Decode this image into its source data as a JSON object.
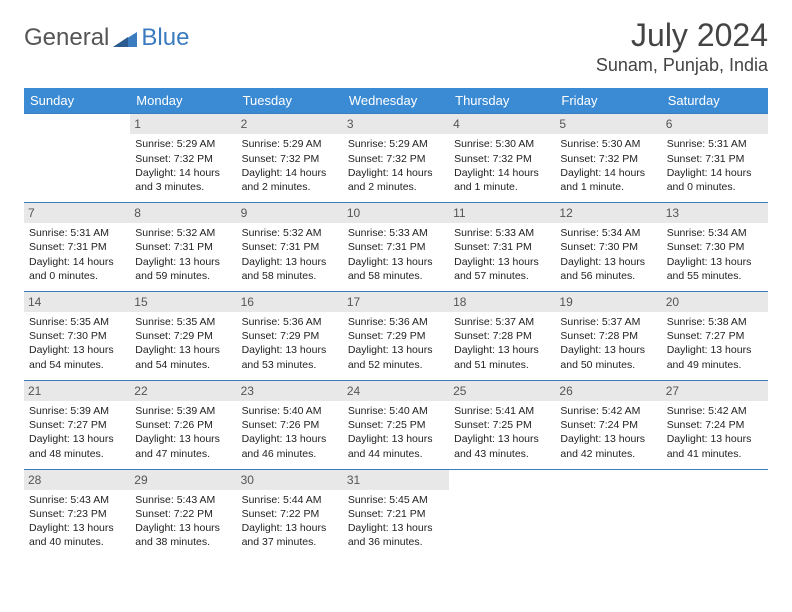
{
  "logo": {
    "general": "General",
    "blue": "Blue"
  },
  "title": "July 2024",
  "location": "Sunam, Punjab, India",
  "colors": {
    "header_bg": "#3b8bd4",
    "header_fg": "#ffffff",
    "border": "#3b7bbf",
    "daynum_bg": "#e8e8e8",
    "text": "#222222"
  },
  "weekdays": [
    "Sunday",
    "Monday",
    "Tuesday",
    "Wednesday",
    "Thursday",
    "Friday",
    "Saturday"
  ],
  "weeks": [
    [
      null,
      {
        "n": "1",
        "sr": "Sunrise: 5:29 AM",
        "ss": "Sunset: 7:32 PM",
        "d1": "Daylight: 14 hours",
        "d2": "and 3 minutes."
      },
      {
        "n": "2",
        "sr": "Sunrise: 5:29 AM",
        "ss": "Sunset: 7:32 PM",
        "d1": "Daylight: 14 hours",
        "d2": "and 2 minutes."
      },
      {
        "n": "3",
        "sr": "Sunrise: 5:29 AM",
        "ss": "Sunset: 7:32 PM",
        "d1": "Daylight: 14 hours",
        "d2": "and 2 minutes."
      },
      {
        "n": "4",
        "sr": "Sunrise: 5:30 AM",
        "ss": "Sunset: 7:32 PM",
        "d1": "Daylight: 14 hours",
        "d2": "and 1 minute."
      },
      {
        "n": "5",
        "sr": "Sunrise: 5:30 AM",
        "ss": "Sunset: 7:32 PM",
        "d1": "Daylight: 14 hours",
        "d2": "and 1 minute."
      },
      {
        "n": "6",
        "sr": "Sunrise: 5:31 AM",
        "ss": "Sunset: 7:31 PM",
        "d1": "Daylight: 14 hours",
        "d2": "and 0 minutes."
      }
    ],
    [
      {
        "n": "7",
        "sr": "Sunrise: 5:31 AM",
        "ss": "Sunset: 7:31 PM",
        "d1": "Daylight: 14 hours",
        "d2": "and 0 minutes."
      },
      {
        "n": "8",
        "sr": "Sunrise: 5:32 AM",
        "ss": "Sunset: 7:31 PM",
        "d1": "Daylight: 13 hours",
        "d2": "and 59 minutes."
      },
      {
        "n": "9",
        "sr": "Sunrise: 5:32 AM",
        "ss": "Sunset: 7:31 PM",
        "d1": "Daylight: 13 hours",
        "d2": "and 58 minutes."
      },
      {
        "n": "10",
        "sr": "Sunrise: 5:33 AM",
        "ss": "Sunset: 7:31 PM",
        "d1": "Daylight: 13 hours",
        "d2": "and 58 minutes."
      },
      {
        "n": "11",
        "sr": "Sunrise: 5:33 AM",
        "ss": "Sunset: 7:31 PM",
        "d1": "Daylight: 13 hours",
        "d2": "and 57 minutes."
      },
      {
        "n": "12",
        "sr": "Sunrise: 5:34 AM",
        "ss": "Sunset: 7:30 PM",
        "d1": "Daylight: 13 hours",
        "d2": "and 56 minutes."
      },
      {
        "n": "13",
        "sr": "Sunrise: 5:34 AM",
        "ss": "Sunset: 7:30 PM",
        "d1": "Daylight: 13 hours",
        "d2": "and 55 minutes."
      }
    ],
    [
      {
        "n": "14",
        "sr": "Sunrise: 5:35 AM",
        "ss": "Sunset: 7:30 PM",
        "d1": "Daylight: 13 hours",
        "d2": "and 54 minutes."
      },
      {
        "n": "15",
        "sr": "Sunrise: 5:35 AM",
        "ss": "Sunset: 7:29 PM",
        "d1": "Daylight: 13 hours",
        "d2": "and 54 minutes."
      },
      {
        "n": "16",
        "sr": "Sunrise: 5:36 AM",
        "ss": "Sunset: 7:29 PM",
        "d1": "Daylight: 13 hours",
        "d2": "and 53 minutes."
      },
      {
        "n": "17",
        "sr": "Sunrise: 5:36 AM",
        "ss": "Sunset: 7:29 PM",
        "d1": "Daylight: 13 hours",
        "d2": "and 52 minutes."
      },
      {
        "n": "18",
        "sr": "Sunrise: 5:37 AM",
        "ss": "Sunset: 7:28 PM",
        "d1": "Daylight: 13 hours",
        "d2": "and 51 minutes."
      },
      {
        "n": "19",
        "sr": "Sunrise: 5:37 AM",
        "ss": "Sunset: 7:28 PM",
        "d1": "Daylight: 13 hours",
        "d2": "and 50 minutes."
      },
      {
        "n": "20",
        "sr": "Sunrise: 5:38 AM",
        "ss": "Sunset: 7:27 PM",
        "d1": "Daylight: 13 hours",
        "d2": "and 49 minutes."
      }
    ],
    [
      {
        "n": "21",
        "sr": "Sunrise: 5:39 AM",
        "ss": "Sunset: 7:27 PM",
        "d1": "Daylight: 13 hours",
        "d2": "and 48 minutes."
      },
      {
        "n": "22",
        "sr": "Sunrise: 5:39 AM",
        "ss": "Sunset: 7:26 PM",
        "d1": "Daylight: 13 hours",
        "d2": "and 47 minutes."
      },
      {
        "n": "23",
        "sr": "Sunrise: 5:40 AM",
        "ss": "Sunset: 7:26 PM",
        "d1": "Daylight: 13 hours",
        "d2": "and 46 minutes."
      },
      {
        "n": "24",
        "sr": "Sunrise: 5:40 AM",
        "ss": "Sunset: 7:25 PM",
        "d1": "Daylight: 13 hours",
        "d2": "and 44 minutes."
      },
      {
        "n": "25",
        "sr": "Sunrise: 5:41 AM",
        "ss": "Sunset: 7:25 PM",
        "d1": "Daylight: 13 hours",
        "d2": "and 43 minutes."
      },
      {
        "n": "26",
        "sr": "Sunrise: 5:42 AM",
        "ss": "Sunset: 7:24 PM",
        "d1": "Daylight: 13 hours",
        "d2": "and 42 minutes."
      },
      {
        "n": "27",
        "sr": "Sunrise: 5:42 AM",
        "ss": "Sunset: 7:24 PM",
        "d1": "Daylight: 13 hours",
        "d2": "and 41 minutes."
      }
    ],
    [
      {
        "n": "28",
        "sr": "Sunrise: 5:43 AM",
        "ss": "Sunset: 7:23 PM",
        "d1": "Daylight: 13 hours",
        "d2": "and 40 minutes."
      },
      {
        "n": "29",
        "sr": "Sunrise: 5:43 AM",
        "ss": "Sunset: 7:22 PM",
        "d1": "Daylight: 13 hours",
        "d2": "and 38 minutes."
      },
      {
        "n": "30",
        "sr": "Sunrise: 5:44 AM",
        "ss": "Sunset: 7:22 PM",
        "d1": "Daylight: 13 hours",
        "d2": "and 37 minutes."
      },
      {
        "n": "31",
        "sr": "Sunrise: 5:45 AM",
        "ss": "Sunset: 7:21 PM",
        "d1": "Daylight: 13 hours",
        "d2": "and 36 minutes."
      },
      null,
      null,
      null
    ]
  ]
}
